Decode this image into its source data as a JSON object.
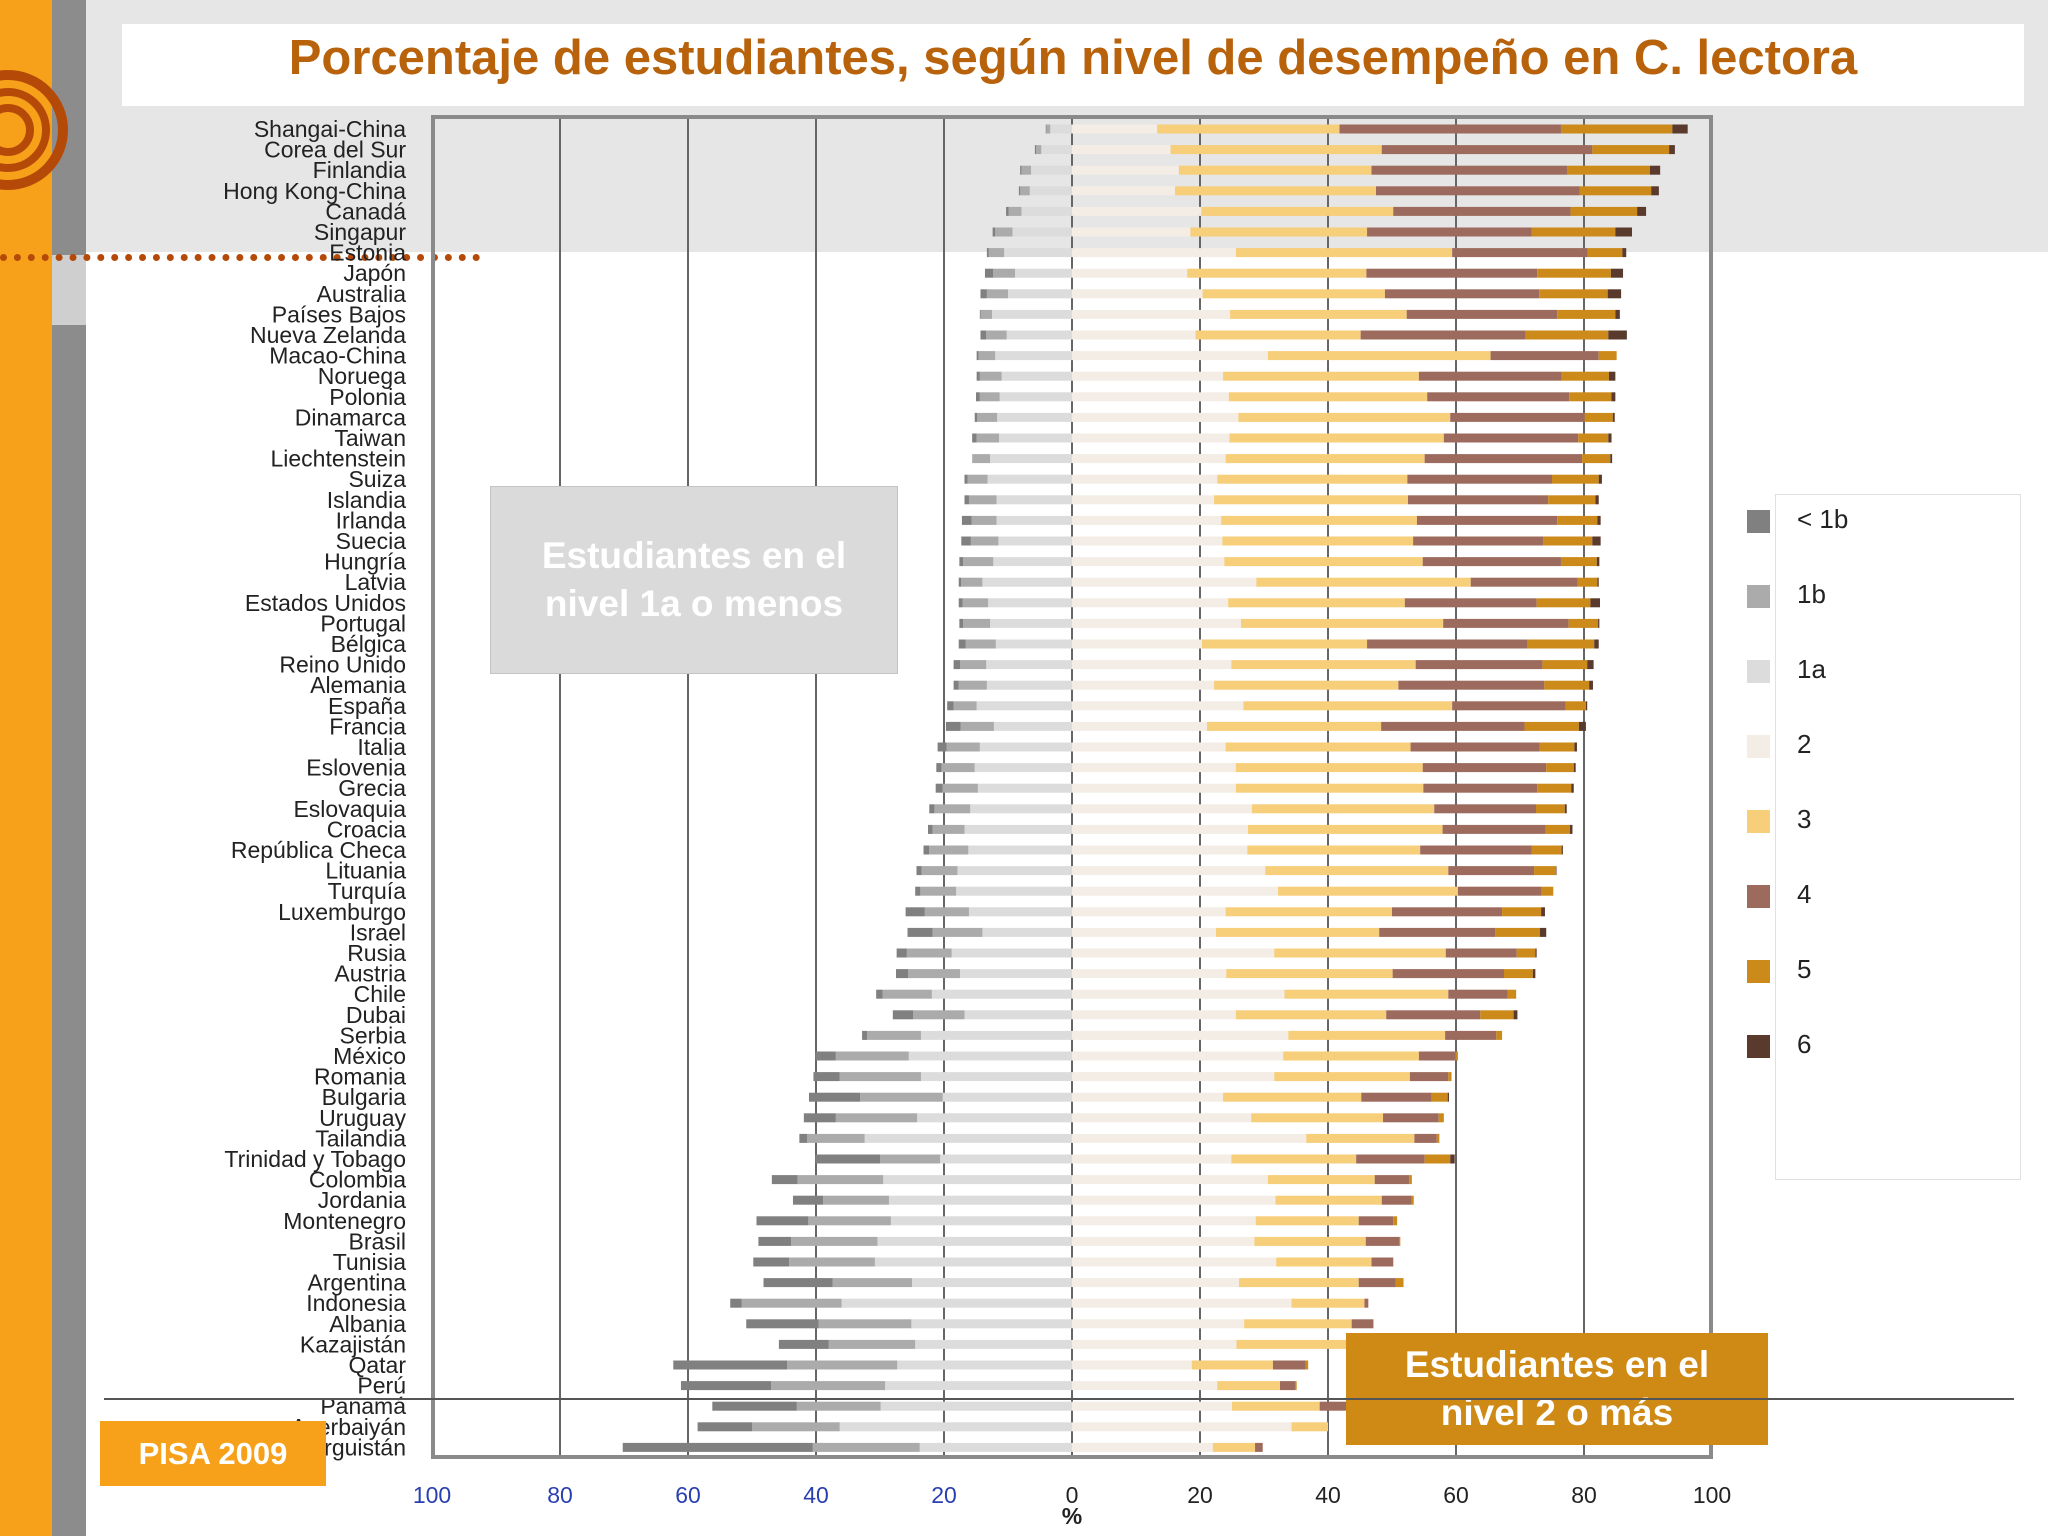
{
  "title": "Porcentaje de estudiantes, según nivel de desempeño en C. lectora",
  "badge": "PISA 2009",
  "callout_left": "Estudiantes en el nivel 1a o menos",
  "callout_right": "Estudiantes en el nivel 2 o más",
  "legend": [
    {
      "label": "< 1b",
      "color": "#808080"
    },
    {
      "label": "1b",
      "color": "#ababab"
    },
    {
      "label": "1a",
      "color": "#dcdcdc"
    },
    {
      "label": "2",
      "color": "#f3ede6"
    },
    {
      "label": "3",
      "color": "#f7ce7a"
    },
    {
      "label": "4",
      "color": "#9c6b5e"
    },
    {
      "label": "5",
      "color": "#cc8a1a"
    },
    {
      "label": "6",
      "color": "#5a3a2c"
    }
  ],
  "chart_data": {
    "type": "bar",
    "orientation": "horizontal-diverging-stacked",
    "xlabel": "%",
    "x_ticks_left": [
      "100",
      "80",
      "60",
      "40",
      "20",
      "0"
    ],
    "x_ticks_right": [
      "20",
      "40",
      "60",
      "80",
      "100"
    ],
    "levels": [
      "< 1b",
      "1b",
      "1a",
      "2",
      "3",
      "4",
      "5",
      "6"
    ],
    "categories": [
      "Shangai-China",
      "Corea del Sur",
      "Finlandia",
      "Hong Kong-China",
      "Canadá",
      "Singapur",
      "Estonia",
      "Japón",
      "Australia",
      "Países Bajos",
      "Nueva Zelanda",
      "Macao-China",
      "Noruega",
      "Polonia",
      "Dinamarca",
      "Taiwan",
      "Liechtenstein",
      "Suiza",
      "Islandia",
      "Irlanda",
      "Suecia",
      "Hungría",
      "Latvia",
      "Estados Unidos",
      "Portugal",
      "Bélgica",
      "Reino Unido",
      "Alemania",
      "España",
      "Francia",
      "Italia",
      "Eslovenia",
      "Grecia",
      "Eslovaquia",
      "Croacia",
      "República Checa",
      "Lituania",
      "Turquía",
      "Luxemburgo",
      "Israel",
      "Rusia",
      "Austria",
      "Chile",
      "Dubai",
      "Serbia",
      "México",
      "Romania",
      "Bulgaria",
      "Uruguay",
      "Tailandia",
      "Trinidad y Tobago",
      "Colombia",
      "Jordania",
      "Montenegro",
      "Brasil",
      "Tunisia",
      "Argentina",
      "Indonesia",
      "Albania",
      "Kazajistán",
      "Qatar",
      "Perú",
      "Panamá",
      "Azerbaiyán",
      "Kirguistán"
    ],
    "values": [
      [
        0.1,
        0.6,
        3.4,
        13.3,
        28.5,
        34.6,
        17.4,
        2.4
      ],
      [
        0.2,
        0.8,
        4.8,
        15.4,
        33.0,
        32.9,
        12.0,
        0.9
      ],
      [
        0.2,
        1.5,
        6.4,
        16.7,
        30.1,
        30.6,
        12.9,
        1.6
      ],
      [
        0.2,
        1.5,
        6.6,
        16.1,
        31.4,
        31.8,
        11.2,
        1.2
      ],
      [
        0.4,
        2.0,
        7.9,
        20.2,
        30.0,
        27.7,
        10.4,
        1.4
      ],
      [
        0.4,
        2.7,
        9.3,
        18.5,
        27.6,
        25.7,
        13.1,
        2.6
      ],
      [
        0.3,
        2.4,
        10.6,
        25.6,
        33.8,
        21.2,
        5.4,
        0.6
      ],
      [
        1.3,
        3.4,
        8.9,
        18.0,
        28.0,
        26.7,
        11.5,
        1.9
      ],
      [
        1.0,
        3.3,
        10.0,
        20.4,
        28.5,
        24.1,
        10.7,
        2.1
      ],
      [
        0.1,
        1.8,
        12.5,
        24.7,
        27.6,
        23.5,
        9.1,
        0.7
      ],
      [
        0.9,
        3.2,
        10.2,
        19.3,
        25.8,
        25.8,
        12.9,
        2.9
      ],
      [
        0.3,
        2.6,
        12.0,
        30.6,
        34.8,
        16.9,
        2.8,
        0.0
      ],
      [
        0.5,
        3.4,
        11.0,
        23.6,
        30.6,
        22.3,
        7.4,
        1.0
      ],
      [
        0.6,
        3.1,
        11.3,
        24.5,
        31.0,
        22.2,
        6.6,
        0.6
      ],
      [
        0.4,
        3.1,
        11.7,
        26.0,
        33.1,
        21.0,
        4.4,
        0.3
      ],
      [
        0.7,
        3.5,
        11.4,
        24.6,
        33.5,
        21.0,
        4.7,
        0.5
      ],
      [
        0.0,
        2.8,
        12.8,
        24.0,
        31.1,
        24.6,
        4.4,
        0.3
      ],
      [
        0.5,
        3.1,
        13.2,
        22.7,
        29.7,
        22.6,
        7.3,
        0.5
      ],
      [
        0.7,
        4.3,
        11.8,
        22.2,
        30.3,
        21.9,
        7.4,
        0.5
      ],
      [
        1.5,
        3.9,
        11.8,
        23.3,
        30.6,
        21.9,
        6.3,
        0.5
      ],
      [
        1.5,
        4.3,
        11.5,
        23.5,
        29.8,
        20.3,
        7.7,
        1.3
      ],
      [
        0.6,
        4.7,
        12.3,
        23.8,
        31.0,
        21.6,
        5.6,
        0.4
      ],
      [
        0.4,
        3.3,
        14.0,
        28.8,
        33.5,
        16.7,
        3.1,
        0.2
      ],
      [
        0.6,
        4.0,
        13.1,
        24.4,
        27.6,
        20.6,
        8.4,
        1.5
      ],
      [
        0.6,
        4.2,
        12.8,
        26.4,
        31.6,
        19.6,
        4.6,
        0.2
      ],
      [
        1.1,
        4.7,
        11.9,
        20.3,
        25.8,
        25.1,
        10.4,
        0.7
      ],
      [
        1.0,
        4.1,
        13.4,
        24.9,
        28.8,
        19.8,
        7.0,
        1.0
      ],
      [
        0.8,
        4.4,
        13.3,
        22.2,
        28.8,
        22.8,
        7.0,
        0.6
      ],
      [
        1.0,
        3.6,
        14.9,
        26.8,
        32.6,
        17.7,
        3.2,
        0.2
      ],
      [
        2.3,
        5.2,
        12.2,
        21.1,
        27.2,
        22.4,
        8.5,
        1.1
      ],
      [
        1.4,
        5.2,
        14.4,
        24.0,
        28.9,
        20.2,
        5.4,
        0.4
      ],
      [
        0.8,
        5.2,
        15.2,
        25.6,
        29.2,
        19.3,
        4.3,
        0.3
      ],
      [
        1.1,
        5.5,
        14.7,
        25.6,
        29.3,
        17.8,
        5.3,
        0.4
      ],
      [
        0.8,
        5.6,
        15.9,
        28.1,
        28.5,
        15.9,
        4.5,
        0.3
      ],
      [
        0.7,
        5.0,
        16.8,
        27.5,
        30.4,
        16.1,
        3.8,
        0.4
      ],
      [
        0.9,
        6.1,
        16.2,
        27.4,
        27.0,
        17.4,
        4.7,
        0.2
      ],
      [
        0.8,
        5.6,
        17.9,
        30.2,
        28.6,
        13.4,
        3.4,
        0.1
      ],
      [
        0.8,
        5.6,
        18.1,
        32.2,
        28.1,
        13.1,
        1.8,
        0.0
      ],
      [
        3.0,
        6.9,
        16.1,
        24.0,
        26.0,
        17.2,
        6.1,
        0.6
      ],
      [
        3.9,
        7.8,
        14.0,
        22.5,
        25.5,
        18.1,
        7.0,
        1.0
      ],
      [
        1.6,
        7.0,
        18.8,
        31.6,
        26.8,
        11.1,
        2.9,
        0.2
      ],
      [
        1.9,
        8.1,
        17.5,
        24.1,
        26.0,
        17.4,
        4.5,
        0.4
      ],
      [
        1.0,
        7.7,
        21.9,
        33.2,
        25.6,
        9.3,
        1.3,
        0.0
      ],
      [
        3.2,
        8.0,
        16.8,
        25.6,
        23.5,
        14.7,
        5.2,
        0.6
      ],
      [
        0.8,
        8.4,
        23.6,
        33.8,
        24.5,
        8.0,
        0.9,
        0.0
      ],
      [
        3.2,
        11.4,
        25.5,
        33.0,
        21.2,
        5.7,
        0.4,
        0.0
      ],
      [
        4.1,
        12.7,
        23.6,
        31.6,
        21.2,
        6.0,
        0.5,
        0.0
      ],
      [
        8.0,
        12.9,
        20.2,
        23.6,
        21.6,
        11.0,
        2.5,
        0.2
      ],
      [
        5.0,
        12.7,
        24.2,
        28.0,
        20.6,
        8.7,
        0.8,
        0.0
      ],
      [
        1.2,
        9.0,
        32.4,
        36.6,
        16.9,
        3.5,
        0.4,
        0.0
      ],
      [
        10.1,
        9.4,
        20.6,
        24.9,
        19.5,
        10.7,
        4.0,
        0.7
      ],
      [
        4.0,
        13.4,
        29.5,
        30.6,
        16.7,
        5.4,
        0.4,
        0.0
      ],
      [
        4.7,
        10.3,
        28.6,
        31.8,
        16.6,
        4.7,
        0.3,
        0.0
      ],
      [
        8.1,
        12.9,
        28.3,
        28.7,
        16.1,
        5.4,
        0.6,
        0.0
      ],
      [
        5.1,
        13.5,
        30.4,
        28.5,
        17.4,
        5.2,
        0.2,
        0.0
      ],
      [
        5.6,
        13.4,
        30.8,
        31.9,
        14.9,
        3.4,
        0.0,
        0.0
      ],
      [
        10.8,
        12.4,
        25.0,
        26.1,
        18.7,
        5.8,
        1.2,
        0.0
      ],
      [
        1.8,
        15.6,
        36.0,
        34.3,
        11.4,
        0.6,
        0.0,
        0.0
      ],
      [
        11.3,
        14.5,
        25.1,
        26.9,
        16.8,
        3.4,
        0.0,
        0.0
      ],
      [
        7.8,
        13.5,
        24.5,
        25.7,
        17.6,
        4.7,
        0.2,
        0.0
      ],
      [
        17.8,
        17.2,
        27.3,
        18.7,
        12.7,
        5.1,
        0.4,
        0.0
      ],
      [
        14.1,
        17.8,
        29.2,
        22.7,
        9.8,
        2.4,
        0.2,
        0.0
      ],
      [
        13.2,
        13.1,
        29.9,
        25.0,
        13.7,
        4.2,
        0.2,
        0.0
      ],
      [
        8.5,
        13.7,
        36.3,
        34.3,
        5.7,
        0.0,
        0.0,
        0.0
      ],
      [
        29.7,
        16.7,
        23.8,
        22.0,
        6.6,
        1.2,
        0.0,
        0.0
      ]
    ],
    "x_range": [
      -100,
      100
    ],
    "grid": true,
    "legend_position": "right"
  }
}
